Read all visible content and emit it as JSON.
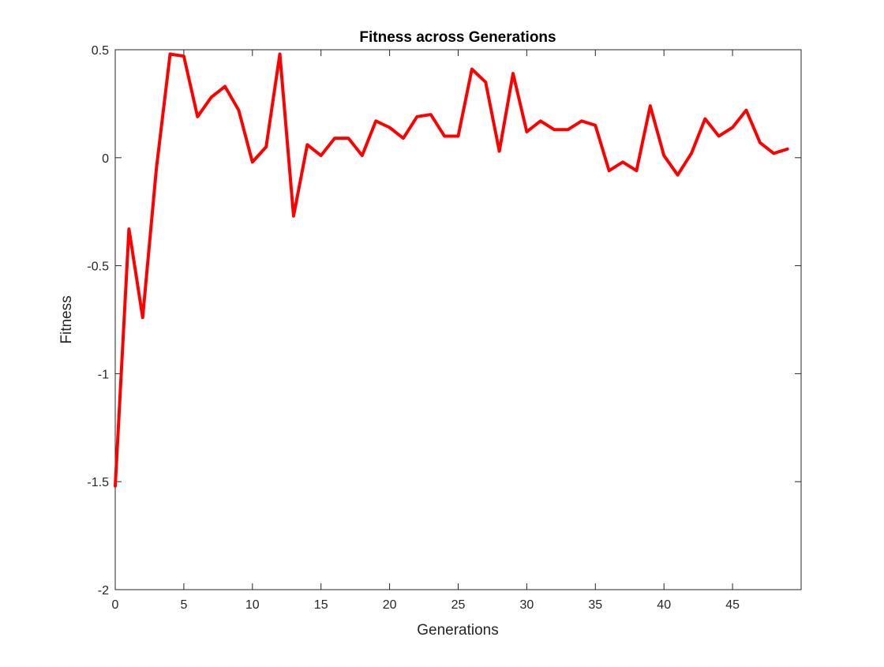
{
  "chart_data": {
    "type": "line",
    "title": "Fitness across Generations",
    "xlabel": "Generations",
    "ylabel": "Fitness",
    "xlim": [
      0,
      50
    ],
    "ylim": [
      -2,
      0.5
    ],
    "xticks": [
      0,
      5,
      10,
      15,
      20,
      25,
      30,
      35,
      40,
      45
    ],
    "xtick_labels": [
      "0",
      "5",
      "10",
      "15",
      "20",
      "25",
      "30",
      "35",
      "40",
      "45"
    ],
    "yticks": [
      -2,
      -1.5,
      -1,
      -0.5,
      0,
      0.5
    ],
    "ytick_labels": [
      "-2",
      "-1.5",
      "-1",
      "-0.5",
      "0",
      "0.5"
    ],
    "grid": false,
    "legend": null,
    "series": [
      {
        "color": "#ff0000",
        "x": [
          0,
          1,
          2,
          3,
          4,
          5,
          6,
          7,
          8,
          9,
          10,
          11,
          12,
          13,
          14,
          15,
          16,
          17,
          18,
          19,
          20,
          21,
          22,
          23,
          24,
          25,
          26,
          27,
          28,
          29,
          30,
          31,
          32,
          33,
          34,
          35,
          36,
          37,
          38,
          39,
          40,
          41,
          42,
          43,
          44,
          45,
          46,
          47,
          48,
          49
        ],
        "y": [
          -1.52,
          -0.33,
          -0.74,
          -0.05,
          0.48,
          0.47,
          0.19,
          0.28,
          0.33,
          0.22,
          -0.02,
          0.05,
          0.48,
          -0.27,
          0.06,
          0.01,
          0.09,
          0.09,
          0.01,
          0.17,
          0.14,
          0.09,
          0.19,
          0.2,
          0.1,
          0.1,
          0.41,
          0.35,
          0.03,
          0.39,
          0.12,
          0.17,
          0.13,
          0.13,
          0.17,
          0.15,
          -0.06,
          -0.02,
          -0.06,
          0.24,
          0.01,
          -0.08,
          0.02,
          0.18,
          0.1,
          0.14,
          0.22,
          0.07,
          0.02,
          0.04
        ]
      }
    ]
  }
}
